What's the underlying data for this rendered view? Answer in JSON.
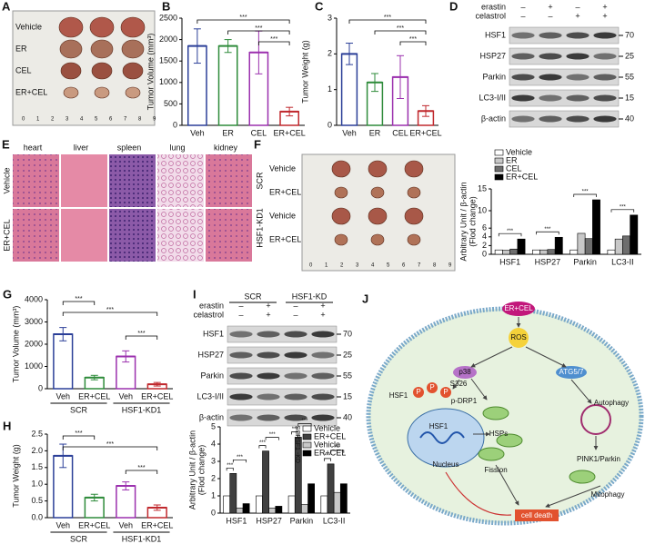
{
  "panel_a": {
    "label": "A",
    "rows": [
      "Vehicle",
      "ER",
      "CEL",
      "ER+CEL"
    ],
    "ruler": [
      0,
      1,
      2,
      3,
      4,
      5,
      6,
      7,
      8,
      9
    ]
  },
  "panel_d": {
    "label": "D",
    "treatments": [
      {
        "name": "erastin",
        "signs": [
          "–",
          "+",
          "–",
          "+"
        ]
      },
      {
        "name": "celastrol",
        "signs": [
          "–",
          "–",
          "+",
          "+"
        ]
      }
    ],
    "blots": [
      {
        "name": "HSF1",
        "mw": 70
      },
      {
        "name": "HSP27",
        "mw": 25
      },
      {
        "name": "Parkin",
        "mw": 55
      },
      {
        "name": "LC3-I/II",
        "mw": 15
      },
      {
        "name": "β-actin",
        "mw": 40
      }
    ]
  },
  "panel_e": {
    "label": "E",
    "tissues": [
      "heart",
      "liver",
      "spleen",
      "lung",
      "kidney"
    ],
    "rows": [
      "Vehicle",
      "ER+CEL"
    ]
  },
  "panel_f": {
    "label": "F",
    "groups": [
      "SCR",
      "HSF1-KD1"
    ],
    "rows": [
      "Vehicle",
      "ER+CEL",
      "Vehicle",
      "ER+CEL"
    ],
    "ruler": [
      0,
      1,
      2,
      3,
      4,
      5,
      6,
      7,
      8,
      9
    ]
  },
  "panel_i": {
    "label": "I",
    "groups": [
      "SCR",
      "HSF1-KD"
    ],
    "treatments": [
      {
        "name": "erastin",
        "signs": [
          "–",
          "+",
          "–",
          "+"
        ]
      },
      {
        "name": "celastrol",
        "signs": [
          "–",
          "+",
          "–",
          "+"
        ]
      }
    ],
    "blots": [
      {
        "name": "HSF1",
        "mw": 70
      },
      {
        "name": "HSP27",
        "mw": 25
      },
      {
        "name": "Parkin",
        "mw": 55
      },
      {
        "name": "LC3-I/II",
        "mw": 15
      },
      {
        "name": "β-actin",
        "mw": 40
      }
    ]
  },
  "panel_j": {
    "label": "J",
    "texts": [
      "ER+CEL",
      "ROS",
      "p38",
      "ATG5/7",
      "HSF1",
      "P",
      "P",
      "P",
      "S326",
      "p-DRP1",
      "HSF1",
      "HSPs",
      "Nucleus",
      "Fission",
      "Autophagy",
      "PINK1/Parkin",
      "Mitophagy",
      "cell death"
    ]
  },
  "chart_data": [
    {
      "type": "bar",
      "label": "B",
      "ylabel": "Tumor Volume (mm³)",
      "categories": [
        "Veh",
        "ER",
        "CEL",
        "ER+CEL"
      ],
      "values": [
        1850,
        1850,
        1700,
        320
      ],
      "errors": [
        400,
        150,
        500,
        100
      ],
      "colors": [
        "#2b3f98",
        "#2e8b3a",
        "#9b30ae",
        "#c0282d"
      ],
      "ylim": [
        0,
        2500
      ],
      "yticks": [
        0,
        500,
        1000,
        1500,
        2000,
        2500
      ],
      "significance": [
        "***",
        "***",
        "***"
      ]
    },
    {
      "type": "bar",
      "label": "C",
      "ylabel": "Tumor Weight (g)",
      "categories": [
        "Veh",
        "ER",
        "CEL",
        "ER+CEL"
      ],
      "values": [
        2.0,
        1.2,
        1.35,
        0.4
      ],
      "errors": [
        0.3,
        0.25,
        0.6,
        0.15
      ],
      "colors": [
        "#2b3f98",
        "#2e8b3a",
        "#9b30ae",
        "#c0282d"
      ],
      "ylim": [
        0,
        3
      ],
      "yticks": [
        0,
        1,
        2,
        3
      ],
      "significance": [
        "***",
        "***",
        "***"
      ]
    },
    {
      "type": "bar",
      "label": "G",
      "ylabel": "Tumor Volume (mm³)",
      "categories": [
        "Veh",
        "ER+CEL",
        "Veh",
        "ER+CEL"
      ],
      "groups": [
        "SCR",
        "HSF1-KD1"
      ],
      "values": [
        2450,
        500,
        1450,
        200
      ],
      "errors": [
        300,
        100,
        250,
        80
      ],
      "colors": [
        "#2b3f98",
        "#2e8b3a",
        "#9b30ae",
        "#c0282d"
      ],
      "ylim": [
        0,
        4000
      ],
      "yticks": [
        0,
        1000,
        2000,
        3000,
        4000
      ],
      "significance": [
        "***",
        "***",
        "***"
      ]
    },
    {
      "type": "bar",
      "label": "H",
      "ylabel": "Tumor Weight (g)",
      "categories": [
        "Veh",
        "ER+CEL",
        "Veh",
        "ER+CEL"
      ],
      "groups": [
        "SCR",
        "HSF1-KD1"
      ],
      "values": [
        1.85,
        0.6,
        0.95,
        0.3
      ],
      "errors": [
        0.35,
        0.1,
        0.12,
        0.08
      ],
      "colors": [
        "#2b3f98",
        "#2e8b3a",
        "#9b30ae",
        "#c0282d"
      ],
      "ylim": [
        0,
        2.5
      ],
      "yticks": [
        {
          "value": 0,
          "label": "0.0"
        },
        {
          "value": 0.5,
          "label": "0.5"
        },
        {
          "value": 1,
          "label": "1.0"
        },
        {
          "value": 1.5,
          "label": "1.5"
        },
        {
          "value": 2,
          "label": "2.0"
        },
        {
          "value": 2.5,
          "label": "2.5"
        }
      ],
      "significance": [
        "***",
        "***",
        "***"
      ]
    },
    {
      "type": "grouped_bar",
      "ylabel": [
        "Arbitrary Unit / β-actin",
        "(Flod change)"
      ],
      "categories": [
        "HSF1",
        "HSP27",
        "Parkin",
        "LC3-II"
      ],
      "series": [
        {
          "name": "Vehicle",
          "color": "#ffffff",
          "values": [
            1,
            1,
            1,
            1
          ]
        },
        {
          "name": "ER",
          "color": "#c8c8c8",
          "values": [
            0.9,
            1.0,
            4.8,
            3.5
          ]
        },
        {
          "name": "CEL",
          "color": "#6e6e6e",
          "values": [
            1.2,
            1.1,
            3.6,
            4.2
          ]
        },
        {
          "name": "ER+CEL",
          "color": "#000000",
          "values": [
            3.5,
            3.9,
            12.5,
            9
          ]
        }
      ],
      "ylim": [
        0,
        15
      ],
      "yticks": [
        0,
        2,
        4,
        6,
        10,
        15
      ],
      "significance": [
        "***",
        "***",
        "***",
        "***"
      ]
    },
    {
      "type": "grouped_bar",
      "ylabel": [
        "Arbitrary Unit / β-actin",
        "(Flod change)"
      ],
      "categories": [
        "HSF1",
        "HSP27",
        "Parkin",
        "LC3-II"
      ],
      "legend_groups": [
        "SCR",
        "HSF1 -KD"
      ],
      "series": [
        {
          "name": "Vehicle",
          "color": "#ffffff",
          "values": [
            1,
            1,
            1,
            1
          ]
        },
        {
          "name": "ER+CEL",
          "color": "#404040",
          "values": [
            2.3,
            3.6,
            4.4,
            2.85
          ]
        },
        {
          "name": "Vehicle",
          "color": "#c8c8c8",
          "values": [
            0.3,
            0.3,
            0.5,
            1.2
          ]
        },
        {
          "name": "ER+CEL",
          "color": "#000000",
          "values": [
            0.55,
            0.4,
            1.7,
            1.7
          ]
        }
      ],
      "ylim": [
        0,
        5
      ],
      "yticks": [
        0,
        1,
        2,
        3,
        4,
        5
      ],
      "significance": [
        "***",
        "***",
        "***",
        "***",
        "***",
        "***",
        "***",
        "***"
      ]
    }
  ]
}
